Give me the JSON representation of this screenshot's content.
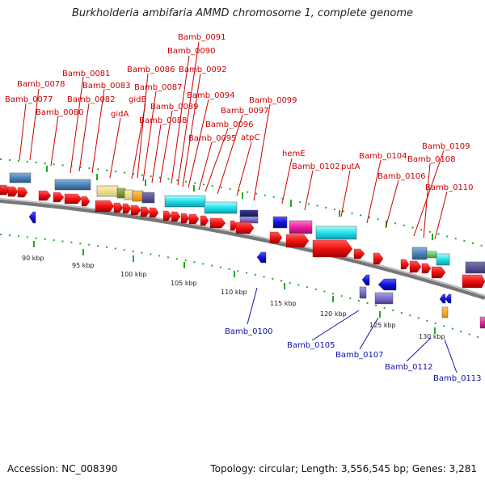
{
  "title": "Burkholderia ambifaria AMMD chromosome 1, complete genome",
  "accession_label": "Accession: NC_008390",
  "topology_label": "Topology: circular; Length: 3,556,545 bp; Genes: 3,281",
  "colors": {
    "gene_forward": "#ee1111",
    "gene_reverse": "#1111dd",
    "label_forward": "#cc0000",
    "label_reverse": "#1010aa",
    "tick": "#22aa22",
    "backbone": "#888888"
  },
  "scale_labels": [
    "90 kbp",
    "95 kbp",
    "100 kbp",
    "105 kbp",
    "110 kbp",
    "115 kbp",
    "120 kbp",
    "125 kbp",
    "130 kbp"
  ],
  "forward_labels": [
    "Bamb_0091",
    "Bamb_0090",
    "Bamb_0092",
    "Bamb_0086",
    "Bamb_0081",
    "Bamb_0078",
    "Bamb_0083",
    "Bamb_0087",
    "Bamb_0077",
    "Bamb_0082",
    "gidB",
    "Bamb_0094",
    "Bamb_0080",
    "Bamb_0089",
    "Bamb_0097",
    "gidA",
    "Bamb_0088",
    "Bamb_0096",
    "Bamb_0099",
    "Bamb_0095",
    "atpC",
    "hemE",
    "Bamb_0109",
    "Bamb_0104",
    "Bamb_0108",
    "Bamb_0102",
    "putA",
    "Bamb_0106",
    "Bamb_0110"
  ],
  "reverse_labels": [
    "Bamb_0100",
    "Bamb_0105",
    "Bamb_0107",
    "Bamb_0112",
    "Bamb_0113"
  ]
}
